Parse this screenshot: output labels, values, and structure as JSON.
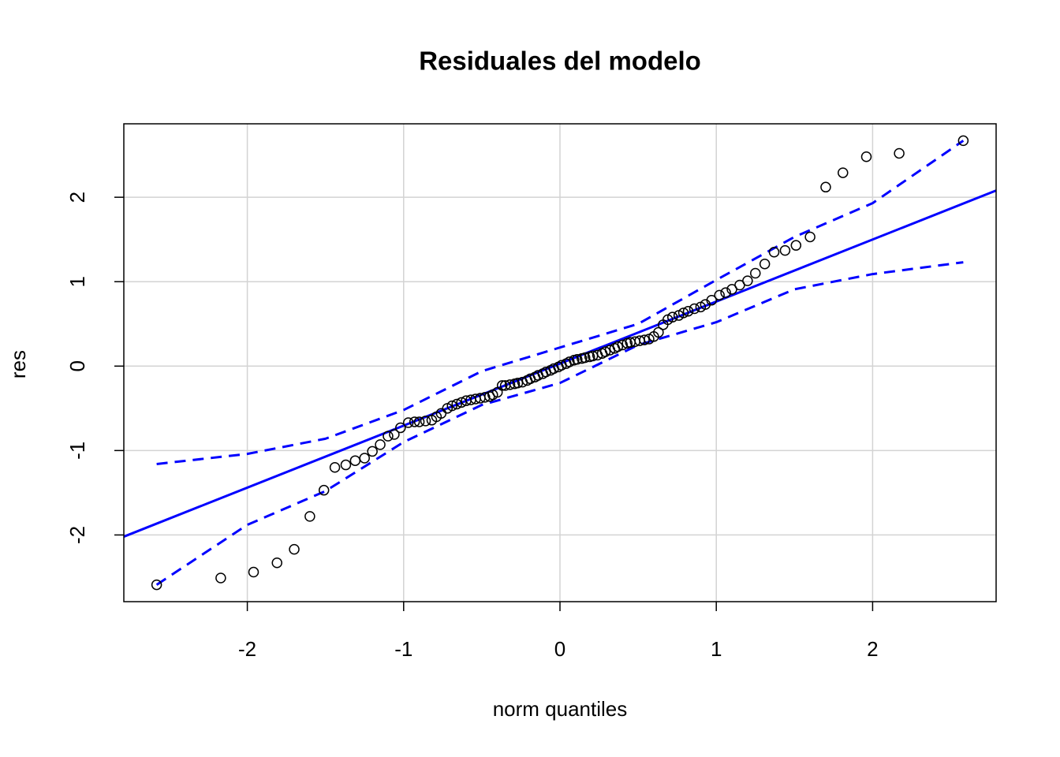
{
  "chart_data": {
    "type": "scatter",
    "title": "Residuales del modelo",
    "xlabel": "norm quantiles",
    "ylabel": "res",
    "xlim": [
      -2.79,
      2.79
    ],
    "ylim": [
      -2.79,
      2.87
    ],
    "xticks": [
      -2,
      -1,
      0,
      1,
      2
    ],
    "yticks": [
      -2,
      -1,
      0,
      1,
      2
    ],
    "grid": true,
    "grid_color": "#d3d3d3",
    "point_color": "#000000",
    "x": [
      -2.58,
      -2.17,
      -1.96,
      -1.81,
      -1.7,
      -1.6,
      -1.51,
      -1.44,
      -1.37,
      -1.31,
      -1.25,
      -1.2,
      -1.15,
      -1.1,
      -1.06,
      -1.02,
      -0.97,
      -0.93,
      -0.9,
      -0.86,
      -0.82,
      -0.79,
      -0.76,
      -0.72,
      -0.69,
      -0.66,
      -0.63,
      -0.6,
      -0.57,
      -0.54,
      -0.51,
      -0.48,
      -0.45,
      -0.43,
      -0.4,
      -0.37,
      -0.35,
      -0.32,
      -0.29,
      -0.27,
      -0.24,
      -0.21,
      -0.19,
      -0.16,
      -0.14,
      -0.11,
      -0.09,
      -0.06,
      -0.04,
      -0.01,
      0.01,
      0.04,
      0.06,
      0.09,
      0.11,
      0.14,
      0.16,
      0.19,
      0.21,
      0.24,
      0.27,
      0.29,
      0.32,
      0.35,
      0.37,
      0.4,
      0.43,
      0.45,
      0.48,
      0.51,
      0.54,
      0.57,
      0.6,
      0.63,
      0.66,
      0.69,
      0.72,
      0.76,
      0.79,
      0.82,
      0.86,
      0.9,
      0.93,
      0.97,
      1.02,
      1.06,
      1.1,
      1.15,
      1.2,
      1.25,
      1.31,
      1.37,
      1.44,
      1.51,
      1.6,
      1.7,
      1.81,
      1.96,
      2.17,
      2.58
    ],
    "values": [
      -2.59,
      -2.51,
      -2.44,
      -2.33,
      -2.17,
      -1.78,
      -1.47,
      -1.2,
      -1.17,
      -1.12,
      -1.09,
      -1.01,
      -0.93,
      -0.83,
      -0.81,
      -0.73,
      -0.67,
      -0.66,
      -0.66,
      -0.65,
      -0.64,
      -0.6,
      -0.56,
      -0.5,
      -0.47,
      -0.45,
      -0.43,
      -0.41,
      -0.4,
      -0.39,
      -0.38,
      -0.37,
      -0.36,
      -0.34,
      -0.31,
      -0.23,
      -0.23,
      -0.22,
      -0.21,
      -0.2,
      -0.19,
      -0.17,
      -0.15,
      -0.13,
      -0.11,
      -0.09,
      -0.07,
      -0.05,
      -0.03,
      -0.01,
      0.01,
      0.03,
      0.05,
      0.07,
      0.08,
      0.09,
      0.1,
      0.11,
      0.12,
      0.13,
      0.15,
      0.17,
      0.19,
      0.21,
      0.23,
      0.25,
      0.27,
      0.28,
      0.29,
      0.3,
      0.31,
      0.32,
      0.35,
      0.4,
      0.49,
      0.55,
      0.58,
      0.6,
      0.63,
      0.65,
      0.68,
      0.7,
      0.73,
      0.78,
      0.84,
      0.87,
      0.91,
      0.96,
      1.01,
      1.1,
      1.21,
      1.35,
      1.37,
      1.43,
      1.53,
      2.12,
      2.29,
      2.48,
      2.52,
      2.67
    ],
    "reference_line": {
      "x": [
        -2.79,
        2.79
      ],
      "y": [
        -2.02,
        2.08
      ],
      "color": "#0000ff"
    },
    "envelope": {
      "x": [
        -2.58,
        -2,
        -1.5,
        -1,
        -0.5,
        0,
        0.5,
        1,
        1.5,
        2,
        2.58
      ],
      "upper": [
        -1.16,
        -1.04,
        -0.86,
        -0.52,
        -0.06,
        0.22,
        0.5,
        1.02,
        1.53,
        1.93,
        2.67
      ],
      "lower": [
        -2.59,
        -1.88,
        -1.48,
        -0.9,
        -0.46,
        -0.2,
        0.25,
        0.52,
        0.91,
        1.09,
        1.23
      ],
      "color": "#0000ff"
    }
  }
}
